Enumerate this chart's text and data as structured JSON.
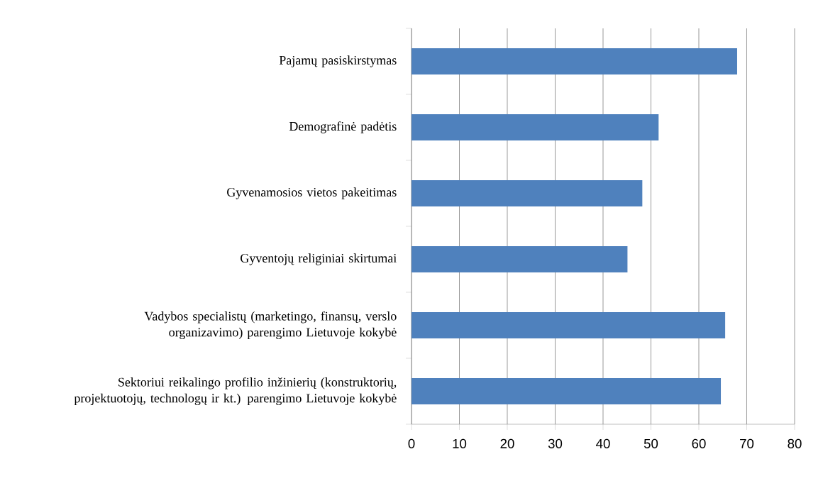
{
  "chart_data": {
    "type": "bar",
    "orientation": "horizontal",
    "categories": [
      "Pajamų pasiskirstymas",
      "Demografinė padėtis",
      "Gyvenamosios vietos pakeitimas",
      "Gyventojų religiniai skirtumai",
      "Vadybos specialistų (marketingo, finansų, verslo organizavimo) parengimo Lietuvoje kokybė",
      "Sektoriui reikalingo profilio inžinierių (konstruktorių, projektuotojų, technologų ir kt.) parengimo Lietuvoje kokybė"
    ],
    "values": [
      68.0,
      51.6,
      48.2,
      45.1,
      65.5,
      64.6
    ],
    "color": "#4f81bd",
    "xlim": [
      0,
      80
    ],
    "xticks": [
      0,
      10,
      20,
      30,
      40,
      50,
      60,
      70,
      80
    ],
    "grid": "x"
  }
}
